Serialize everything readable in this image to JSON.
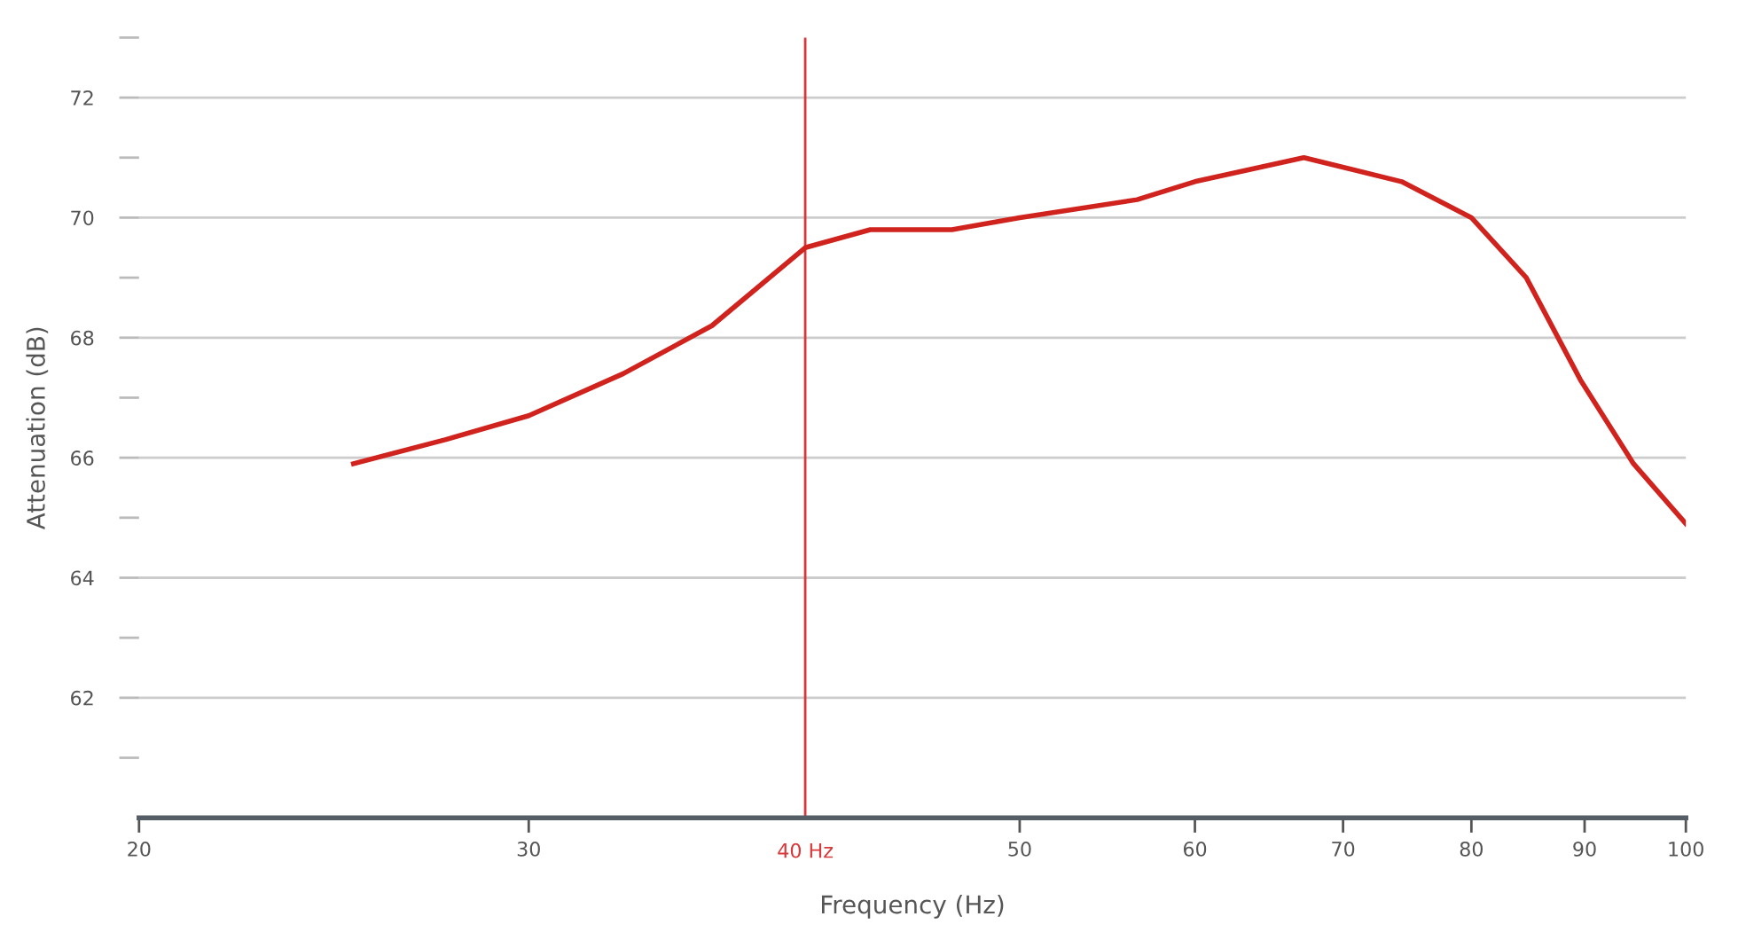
{
  "chart_data": {
    "type": "line",
    "xlabel": "Frequency (Hz)",
    "ylabel": "Attenuation (dB)",
    "log": "x",
    "xlim": [
      20,
      100
    ],
    "xticks": [
      20,
      30,
      50,
      60,
      70,
      80,
      90,
      100
    ],
    "ylim": [
      60,
      73
    ],
    "yticks": [
      {
        "value": 61,
        "label": null
      },
      62,
      {
        "value": 63,
        "label": null
      },
      64,
      {
        "value": 65,
        "label": null
      },
      66,
      {
        "value": 67,
        "label": null
      },
      68,
      {
        "value": 69,
        "label": null
      },
      70,
      {
        "value": 71,
        "label": null
      },
      72,
      {
        "value": 73,
        "label": null
      }
    ],
    "grid": "y",
    "marker": "none",
    "line_style": "solid",
    "ref_lines": [
      {
        "axis": "x",
        "value": 40,
        "label": "40 Hz",
        "color": "#d9383a"
      }
    ],
    "series": [
      {
        "color": "#d0231e",
        "x": [
          25,
          27.5,
          30,
          33.1,
          36.3,
          40,
          42.8,
          46.6,
          50,
          56.5,
          60,
          67.2,
          74.4,
          80,
          84.7,
          89.6,
          94.7,
          100
        ],
        "values": [
          65.9,
          66.3,
          66.7,
          67.4,
          68.2,
          69.5,
          69.8,
          69.8,
          70.0,
          70.3,
          70.6,
          71.0,
          70.6,
          70.0,
          69.0,
          67.3,
          65.9,
          64.9
        ]
      }
    ]
  }
}
